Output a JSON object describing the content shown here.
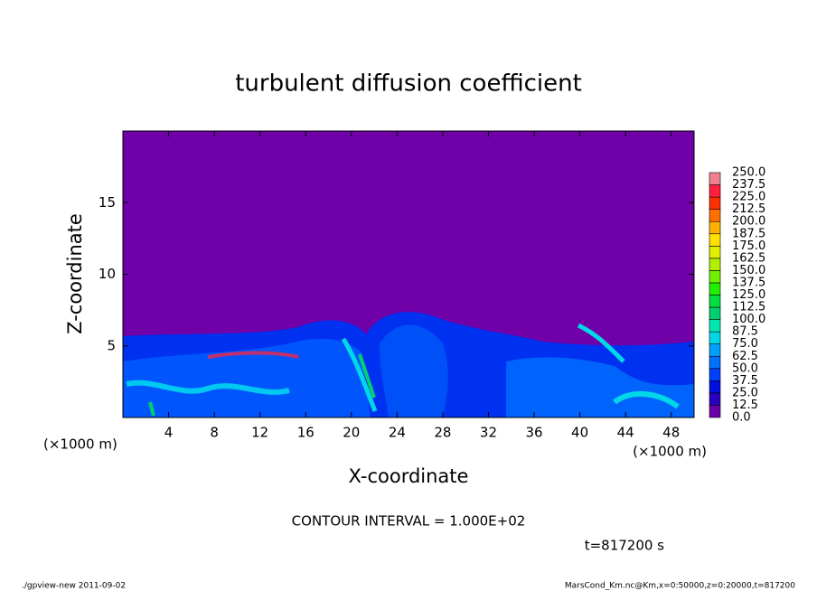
{
  "chart_data": {
    "type": "contour",
    "title": "turbulent diffusion coefficient",
    "xlabel": "X-coordinate",
    "ylabel": "Z-coordinate",
    "x_unit": "(×1000 m)",
    "y_unit": "(×1000 m)",
    "xlim": [
      0,
      50
    ],
    "ylim": [
      0,
      20
    ],
    "xticks": [
      4,
      8,
      12,
      16,
      20,
      24,
      28,
      32,
      36,
      40,
      44,
      48
    ],
    "yticks": [
      5,
      10,
      15
    ],
    "levels": [
      {
        "value": 0,
        "label": "0.0"
      },
      {
        "value": 12.5,
        "label": "12.5"
      },
      {
        "value": 25,
        "label": "25.0"
      },
      {
        "value": 37.5,
        "label": "37.5"
      },
      {
        "value": 50,
        "label": "50.0"
      },
      {
        "value": 62.5,
        "label": "62.5"
      },
      {
        "value": 75,
        "label": "75.0"
      },
      {
        "value": 87.5,
        "label": "87.5"
      },
      {
        "value": 100,
        "label": "100.0"
      },
      {
        "value": 112.5,
        "label": "112.5"
      },
      {
        "value": 125,
        "label": "125.0"
      },
      {
        "value": 137.5,
        "label": "137.5"
      },
      {
        "value": 150,
        "label": "150.0"
      },
      {
        "value": 162.5,
        "label": "162.5"
      },
      {
        "value": 175,
        "label": "175.0"
      },
      {
        "value": 187.5,
        "label": "187.5"
      },
      {
        "value": 200,
        "label": "200.0"
      },
      {
        "value": 212.5,
        "label": "212.5"
      },
      {
        "value": 225,
        "label": "225.0"
      },
      {
        "value": 237.5,
        "label": "237.5"
      },
      {
        "value": 250,
        "label": "250.0"
      }
    ],
    "colors": [
      "#6a00a8",
      "#2a00c0",
      "#0010e0",
      "#0040ff",
      "#0070ff",
      "#00a0ff",
      "#00d8e8",
      "#00e8b0",
      "#00d070",
      "#00e040",
      "#20f000",
      "#70f000",
      "#b0f000",
      "#e0f000",
      "#ffe000",
      "#ffb000",
      "#ff7000",
      "#ff3000",
      "#ff2040",
      "#f08090"
    ],
    "contour_interval": "CONTOUR INTERVAL = 1.000E+02",
    "time": "t=817200 s"
  },
  "footer": {
    "left": "./gpview-new  2011-09-02",
    "right": "MarsCond_Km.nc@Km,x=0:50000,z=0:20000,t=817200"
  }
}
